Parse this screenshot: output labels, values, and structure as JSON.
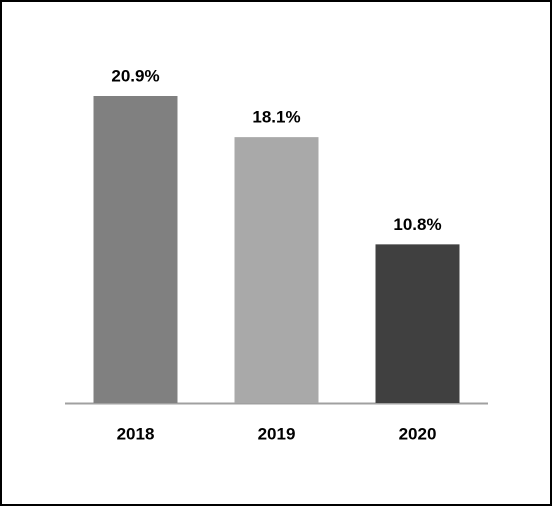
{
  "chart_data": {
    "type": "bar",
    "categories": [
      "2018",
      "2019",
      "2020"
    ],
    "values": [
      20.9,
      18.1,
      10.8
    ],
    "value_labels": [
      "20.9%",
      "18.1%",
      "10.8%"
    ],
    "colors": [
      "#808080",
      "#a9a9a9",
      "#404040"
    ]
  }
}
